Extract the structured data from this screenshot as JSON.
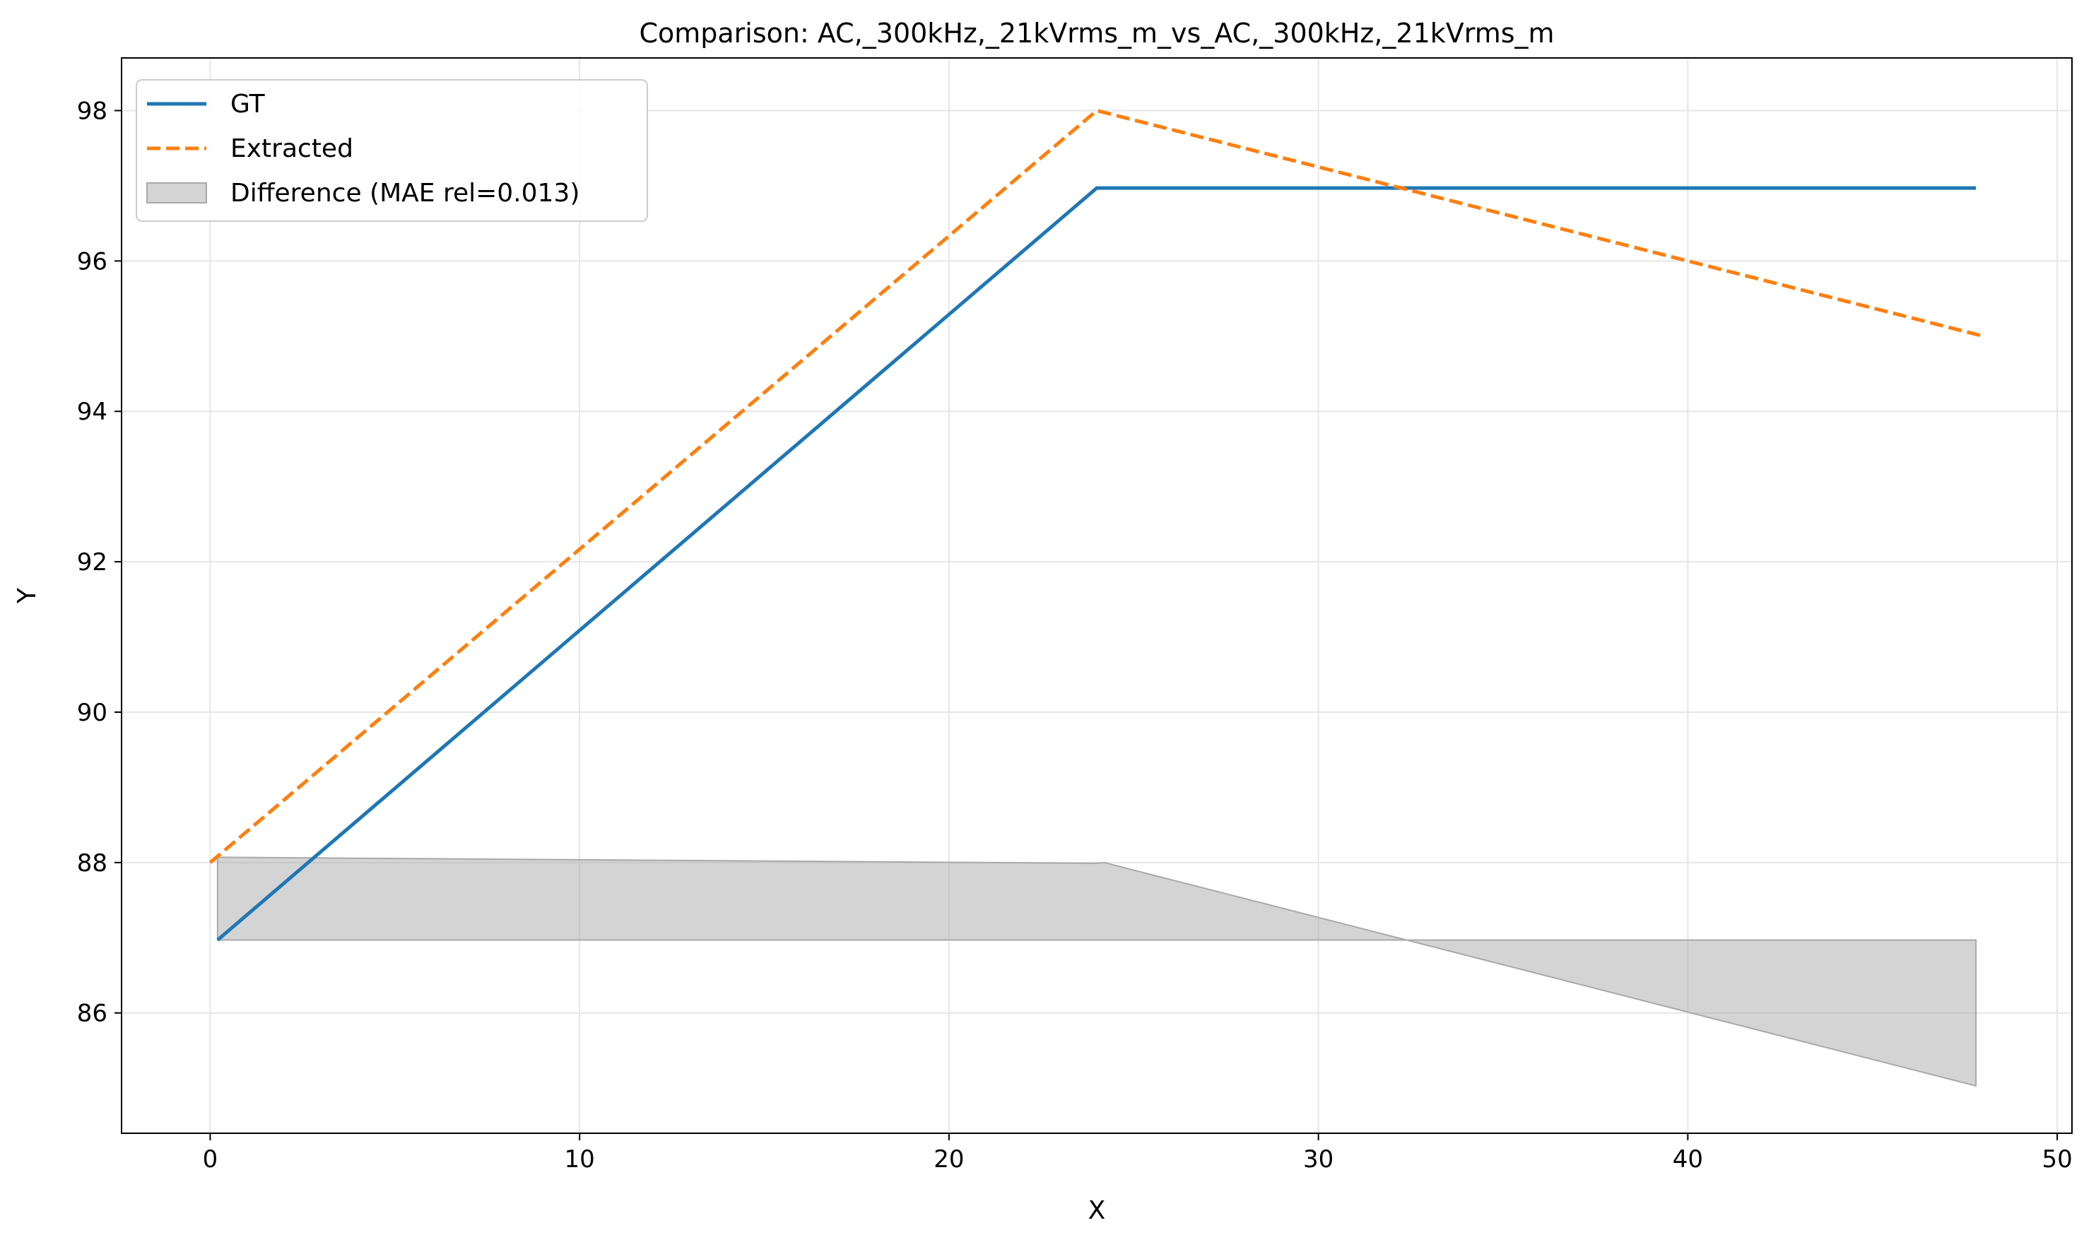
{
  "chart_data": {
    "type": "line",
    "title": "Comparison: AC,_300kHz,_21kVrms_m_vs_AC,_300kHz,_21kVrms_m",
    "xlabel": "X",
    "ylabel": "Y",
    "xlim": [
      -2.4,
      50.4
    ],
    "ylim": [
      84.4,
      98.7
    ],
    "xticks": [
      0,
      10,
      20,
      30,
      40,
      50
    ],
    "yticks": [
      86,
      88,
      90,
      92,
      94,
      96,
      98
    ],
    "grid": true,
    "legend_position": "upper-left",
    "series": [
      {
        "name": "GT",
        "color": "#1f77b4",
        "style": "solid",
        "x": [
          0.2,
          24.0,
          47.8
        ],
        "y": [
          86.97,
          96.97,
          96.97
        ]
      },
      {
        "name": "Extracted",
        "color": "#ff7f0e",
        "style": "dashed",
        "x": [
          0.0,
          24.0,
          48.0
        ],
        "y": [
          88.0,
          98.0,
          95.0
        ]
      }
    ],
    "difference": {
      "name": "Difference (MAE rel=0.013)",
      "color": "#a9a9a9",
      "baseline": 86.97,
      "x": [
        0.2,
        24.0,
        24.2,
        47.8
      ],
      "y": [
        88.07,
        87.99,
        88.0,
        85.03
      ]
    }
  }
}
